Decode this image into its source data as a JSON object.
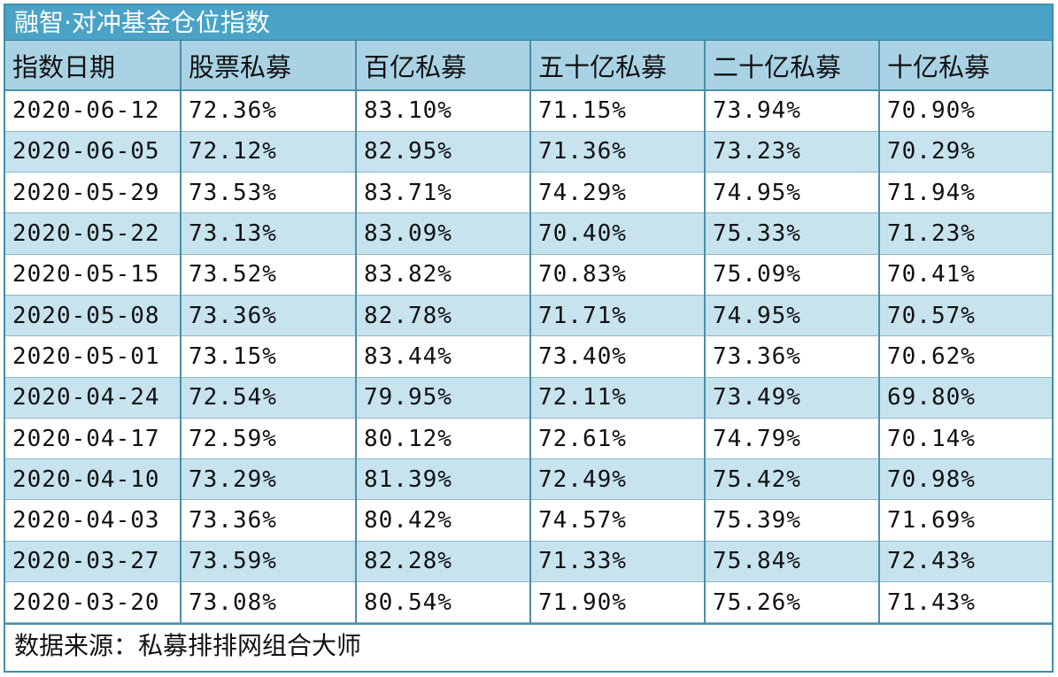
{
  "chart_data": {
    "type": "table",
    "title": "融智·对冲基金仓位指数",
    "columns": [
      "指数日期",
      "股票私募",
      "百亿私募",
      "五十亿私募",
      "二十亿私募",
      "十亿私募"
    ],
    "rows": [
      [
        "2020-06-12",
        "72.36%",
        "83.10%",
        "71.15%",
        "73.94%",
        "70.90%"
      ],
      [
        "2020-06-05",
        "72.12%",
        "82.95%",
        "71.36%",
        "73.23%",
        "70.29%"
      ],
      [
        "2020-05-29",
        "73.53%",
        "83.71%",
        "74.29%",
        "74.95%",
        "71.94%"
      ],
      [
        "2020-05-22",
        "73.13%",
        "83.09%",
        "70.40%",
        "75.33%",
        "71.23%"
      ],
      [
        "2020-05-15",
        "73.52%",
        "83.82%",
        "70.83%",
        "75.09%",
        "70.41%"
      ],
      [
        "2020-05-08",
        "73.36%",
        "82.78%",
        "71.71%",
        "74.95%",
        "70.57%"
      ],
      [
        "2020-05-01",
        "73.15%",
        "83.44%",
        "73.40%",
        "73.36%",
        "70.62%"
      ],
      [
        "2020-04-24",
        "72.54%",
        "79.95%",
        "72.11%",
        "73.49%",
        "69.80%"
      ],
      [
        "2020-04-17",
        "72.59%",
        "80.12%",
        "72.61%",
        "74.79%",
        "70.14%"
      ],
      [
        "2020-04-10",
        "73.29%",
        "81.39%",
        "72.49%",
        "75.42%",
        "70.98%"
      ],
      [
        "2020-04-03",
        "73.36%",
        "80.42%",
        "74.57%",
        "75.39%",
        "71.69%"
      ],
      [
        "2020-03-27",
        "73.59%",
        "82.28%",
        "71.33%",
        "75.84%",
        "72.43%"
      ],
      [
        "2020-03-20",
        "73.08%",
        "80.54%",
        "71.90%",
        "75.26%",
        "71.43%"
      ]
    ],
    "source": "数据来源：私募排排网组合大师"
  },
  "colors": {
    "title_bar": "#4aa2c6",
    "header_row": "#a9d3e4",
    "stripe_row": "#c6e3ee",
    "border": "#4a8fa8"
  }
}
